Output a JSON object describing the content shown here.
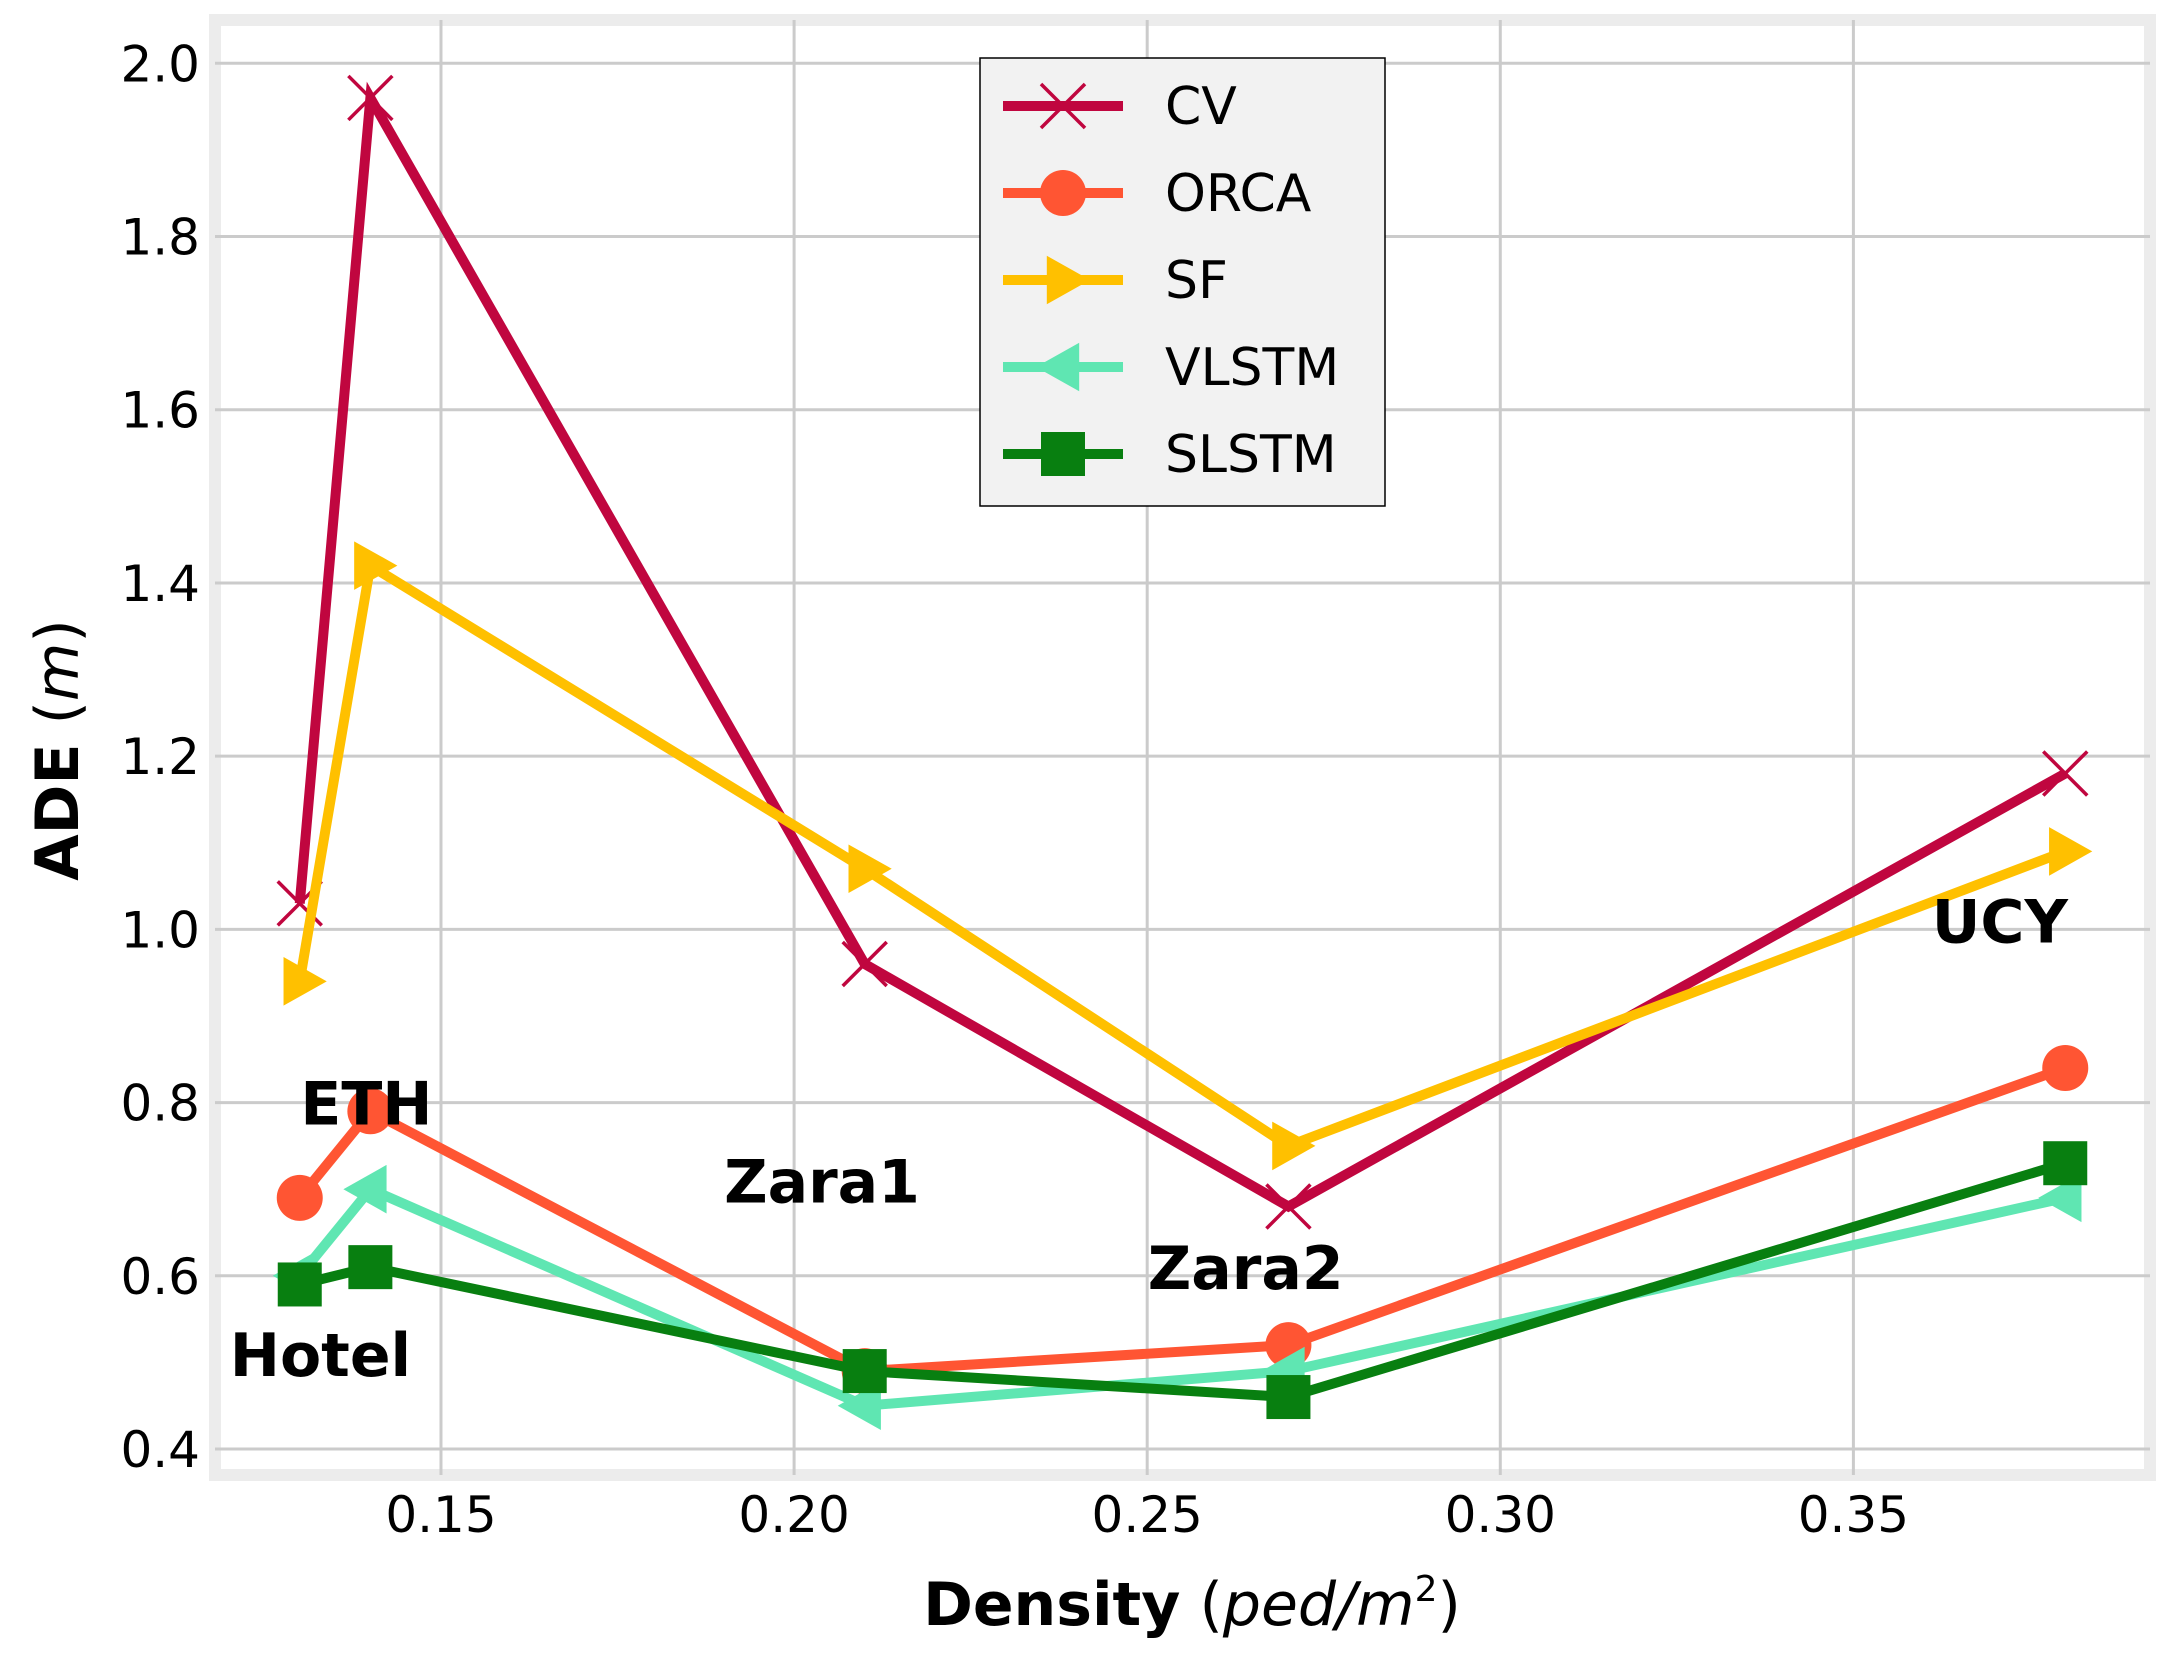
{
  "chart_data": {
    "type": "line",
    "xlabel": "Density",
    "xlabel_unit": "ped/m",
    "xlabel_unit_exp": "2",
    "ylabel": "ADE",
    "ylabel_unit": "m",
    "xlim": [
      0.118,
      0.392
    ],
    "ylim": [
      0.37,
      2.05
    ],
    "xticks": [
      0.15,
      0.2,
      0.25,
      0.3,
      0.35
    ],
    "xtick_labels": [
      "0.15",
      "0.20",
      "0.25",
      "0.30",
      "0.35"
    ],
    "yticks": [
      0.4,
      0.6,
      0.8,
      1.0,
      1.2,
      1.4,
      1.6,
      1.8,
      2.0
    ],
    "ytick_labels": [
      "0.4",
      "0.6",
      "0.8",
      "1.0",
      "1.2",
      "1.4",
      "1.6",
      "1.8",
      "2.0"
    ],
    "grid": true,
    "legend_position": "top-center",
    "x": [
      0.13,
      0.14,
      0.21,
      0.27,
      0.38
    ],
    "series": [
      {
        "name": "CV",
        "color": "#c0063f",
        "marker": "x",
        "values": [
          1.03,
          1.96,
          0.96,
          0.68,
          1.18
        ]
      },
      {
        "name": "ORCA",
        "color": "#ff5533",
        "marker": "circle",
        "values": [
          0.69,
          0.79,
          0.49,
          0.52,
          0.84
        ]
      },
      {
        "name": "SF",
        "color": "#ffc000",
        "marker": "triangle-right",
        "values": [
          0.94,
          1.42,
          1.07,
          0.75,
          1.09
        ]
      },
      {
        "name": "VLSTM",
        "color": "#5fe6b2",
        "marker": "triangle-left",
        "values": [
          0.6,
          0.7,
          0.45,
          0.49,
          0.69
        ]
      },
      {
        "name": "SLSTM",
        "color": "#087f10",
        "marker": "square",
        "values": [
          0.59,
          0.61,
          0.49,
          0.46,
          0.73
        ]
      }
    ],
    "annotations": [
      {
        "text": "Hotel",
        "x": 0.13,
        "y": 0.51
      },
      {
        "text": "ETH",
        "x": 0.14,
        "y": 0.8
      },
      {
        "text": "Zara1",
        "x": 0.2,
        "y": 0.71
      },
      {
        "text": "Zara2",
        "x": 0.26,
        "y": 0.61
      },
      {
        "text": "UCY",
        "x": 0.371,
        "y": 1.01
      }
    ]
  }
}
